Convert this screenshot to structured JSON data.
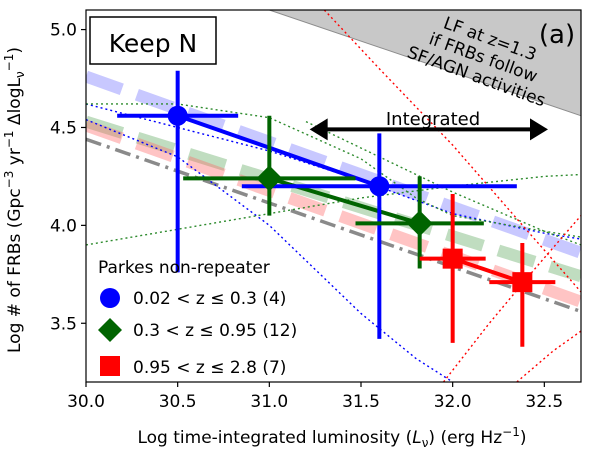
{
  "chart_data": {
    "type": "scatter",
    "panel_label": "(a)",
    "title_box": "Keep N",
    "xlabel": "Log time-integrated luminosity (",
    "xlabel_math": "L",
    "xlabel_sub": "ν",
    "xlabel_unit": ") (erg Hz",
    "xlabel_exp": "−1",
    "xlabel_close": ")",
    "ylabel_prefix": "Log # of FRBs (Gpc",
    "ylabel_exp1": "−3",
    "ylabel_mid": " yr",
    "ylabel_exp2": "−1",
    "ylabel_delta": " ΔlogL",
    "ylabel_sub": "ν",
    "ylabel_exp3": "−1",
    "ylabel_close": ")",
    "xlim": [
      30.0,
      32.7
    ],
    "ylim": [
      3.2,
      5.1
    ],
    "xticks": [
      "30.0",
      "30.5",
      "31.0",
      "31.5",
      "32.0",
      "32.5"
    ],
    "xtick_values": [
      30.0,
      30.5,
      31.0,
      31.5,
      32.0,
      32.5
    ],
    "yticks": [
      "3.5",
      "4.0",
      "4.5",
      "5.0"
    ],
    "ytick_values": [
      3.5,
      4.0,
      4.5,
      5.0
    ],
    "legend_title": "Parkes non-repeater",
    "legend_location": "lower-left",
    "annotation_integrated": "Integrated",
    "annotation_integrated_arrow": {
      "x1": 31.22,
      "x2": 32.52,
      "y": 4.49
    },
    "lf_label_lines": [
      "LF at z=1.3",
      "if FRBs follow",
      "SF/AGN activities"
    ],
    "lf_band": [
      [
        31.0,
        5.1
      ],
      [
        32.7,
        4.56
      ],
      [
        32.7,
        5.1
      ]
    ],
    "series": [
      {
        "name": "0.02 < z ≤ 0.3 (4)",
        "legend_math": "0.02 < z ≤ 0.3 (4)",
        "color": "#0000ff",
        "marker": "circle",
        "points": [
          {
            "x": 30.5,
            "y": 4.56,
            "xerr": [
              0.33,
              0.33
            ],
            "yerr": [
              0.8,
              0.23
            ]
          },
          {
            "x": 31.6,
            "y": 4.2,
            "xerr": [
              0.75,
              0.75
            ],
            "yerr": [
              0.78,
              0.27
            ]
          }
        ],
        "fit": [
          [
            30.5,
            4.56
          ],
          [
            31.6,
            4.2
          ]
        ],
        "dashed_model": [
          [
            30.0,
            4.76
          ],
          [
            32.7,
            3.86
          ]
        ]
      },
      {
        "name": "0.3 < z ≤ 0.95 (12)",
        "legend_math": "0.3 < z ≤ 0.95 (12)",
        "color": "#006400",
        "marker": "diamond",
        "points": [
          {
            "x": 31.0,
            "y": 4.24,
            "xerr": [
              0.47,
              0.47
            ],
            "yerr": [
              0.19,
              0.32
            ]
          },
          {
            "x": 31.82,
            "y": 4.01,
            "xerr": [
              0.35,
              0.35
            ],
            "yerr": [
              0.23,
              0.24
            ]
          }
        ],
        "fit": [
          [
            31.0,
            4.24
          ],
          [
            31.82,
            4.01
          ]
        ],
        "dashed_model": [
          [
            30.0,
            4.53
          ],
          [
            32.7,
            3.74
          ]
        ]
      },
      {
        "name": "0.95 < z ≤ 2.8 (7)",
        "legend_math": "0.95 < z ≤ 2.8 (7)",
        "color": "#ff0000",
        "marker": "square",
        "points": [
          {
            "x": 32.0,
            "y": 3.83,
            "xerr": [
              0.18,
              0.18
            ],
            "yerr": [
              0.43,
              0.33
            ]
          },
          {
            "x": 32.38,
            "y": 3.71,
            "xerr": [
              0.18,
              0.18
            ],
            "yerr": [
              0.33,
              0.2
            ]
          }
        ],
        "fit": [
          [
            32.0,
            3.83
          ],
          [
            32.38,
            3.71
          ]
        ],
        "dashed_model": [
          [
            30.0,
            4.51
          ],
          [
            32.7,
            3.61
          ]
        ]
      }
    ],
    "gray_dashdot_model": [
      [
        30.0,
        4.44
      ],
      [
        32.7,
        3.56
      ]
    ],
    "dotted_curves": [
      {
        "color": "#0000ff",
        "points": [
          [
            30.0,
            4.62
          ],
          [
            30.5,
            4.5
          ],
          [
            31.0,
            4.38
          ],
          [
            31.5,
            4.23
          ],
          [
            32.0,
            4.06
          ],
          [
            32.5,
            3.96
          ],
          [
            32.7,
            3.93
          ]
        ]
      },
      {
        "color": "#0000ff",
        "points": [
          [
            30.0,
            4.54
          ],
          [
            30.5,
            4.35
          ],
          [
            31.0,
            4.0
          ],
          [
            31.5,
            3.55
          ],
          [
            31.8,
            3.32
          ],
          [
            32.0,
            3.2
          ]
        ]
      },
      {
        "color": "#2e8b2e",
        "points": [
          [
            30.0,
            4.62
          ],
          [
            30.5,
            4.62
          ],
          [
            31.0,
            4.55
          ],
          [
            31.5,
            4.34
          ],
          [
            31.8,
            4.14
          ],
          [
            32.0,
            4.05
          ],
          [
            32.5,
            3.97
          ],
          [
            32.7,
            3.94
          ]
        ]
      },
      {
        "color": "#2e8b2e",
        "points": [
          [
            30.0,
            3.9
          ],
          [
            30.5,
            3.98
          ],
          [
            31.0,
            4.06
          ],
          [
            31.5,
            4.14
          ],
          [
            32.0,
            4.2
          ],
          [
            32.5,
            4.25
          ],
          [
            32.7,
            4.26
          ]
        ]
      },
      {
        "color": "#2e8b2e",
        "points": [
          [
            31.2,
            4.53
          ],
          [
            31.6,
            4.35
          ],
          [
            32.0,
            4.17
          ],
          [
            32.5,
            3.97
          ],
          [
            32.7,
            3.9
          ]
        ]
      },
      {
        "color": "#ff0000",
        "points": [
          [
            31.3,
            5.1
          ],
          [
            31.6,
            4.8
          ],
          [
            32.0,
            4.41
          ],
          [
            32.4,
            3.98
          ],
          [
            32.7,
            3.66
          ]
        ]
      },
      {
        "color": "#ff0000",
        "points": [
          [
            31.95,
            3.2
          ],
          [
            32.2,
            3.5
          ],
          [
            32.45,
            3.78
          ],
          [
            32.7,
            4.05
          ]
        ]
      },
      {
        "color": "#ff0000",
        "points": [
          [
            32.35,
            3.2
          ],
          [
            32.55,
            3.36
          ],
          [
            32.7,
            3.46
          ]
        ]
      }
    ]
  }
}
